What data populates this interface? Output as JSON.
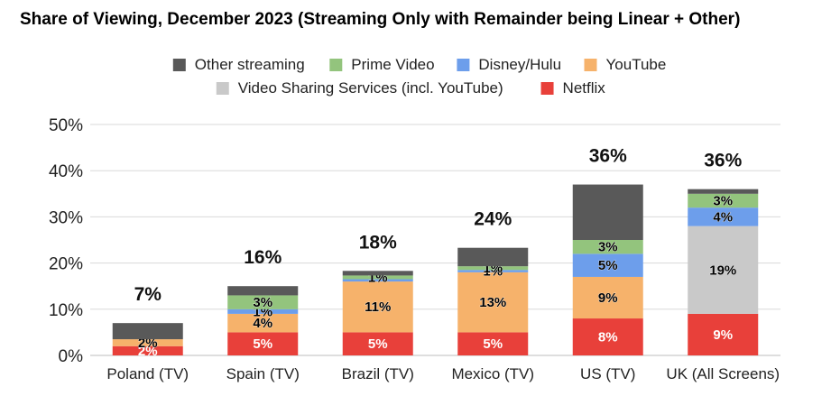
{
  "chart_data": {
    "type": "bar",
    "stacked": true,
    "title": "Share of Viewing, December 2023 (Streaming Only with Remainder being Linear + Other)",
    "categories": [
      "Poland (TV)",
      "Spain (TV)",
      "Brazil (TV)",
      "Mexico (TV)",
      "US (TV)",
      "UK (All Screens)"
    ],
    "series": [
      {
        "name": "Netflix",
        "color": "#e8403a",
        "values": [
          2,
          5,
          5,
          5,
          8,
          9
        ],
        "labels": [
          "2%",
          "5%",
          "5%",
          "5%",
          "8%",
          "9%"
        ]
      },
      {
        "name": "Video Sharing Services (incl. YouTube)",
        "color": "#c9c9c9",
        "values": [
          0,
          0,
          0,
          0,
          0,
          19
        ],
        "labels": [
          "",
          "",
          "",
          "",
          "",
          "19%"
        ]
      },
      {
        "name": "YouTube",
        "color": "#f6b26b",
        "values": [
          1.5,
          4,
          11,
          13,
          9,
          0
        ],
        "labels": [
          "2%",
          "4%",
          "11%",
          "13%",
          "9%",
          ""
        ]
      },
      {
        "name": "Disney/Hulu",
        "color": "#6d9eeb",
        "values": [
          0,
          1,
          0.5,
          0.5,
          5,
          4
        ],
        "labels": [
          "",
          "1%",
          "",
          "1%",
          "5%",
          "4%"
        ]
      },
      {
        "name": "Prime Video",
        "color": "#93c47d",
        "values": [
          0,
          3,
          0.8,
          0.8,
          3,
          3
        ],
        "labels": [
          "",
          "3%",
          "1%",
          "1%",
          "3%",
          "3%"
        ]
      },
      {
        "name": "Other streaming",
        "color": "#595959",
        "values": [
          3.5,
          2,
          1,
          4,
          12,
          1
        ],
        "labels": [
          "",
          "",
          "",
          "",
          "",
          ""
        ]
      }
    ],
    "totals": [
      "7%",
      "16%",
      "18%",
      "24%",
      "36%",
      "36%"
    ],
    "ylim": [
      0,
      50
    ],
    "yticks": [
      "0%",
      "10%",
      "20%",
      "30%",
      "40%",
      "50%"
    ],
    "legend": {
      "placement": "top",
      "row1": [
        "Other streaming",
        "Prime Video",
        "Disney/Hulu",
        "YouTube"
      ],
      "row2": [
        "Video Sharing Services (incl. YouTube)",
        "Netflix"
      ]
    },
    "grid": true,
    "xlabel": "",
    "ylabel": ""
  }
}
